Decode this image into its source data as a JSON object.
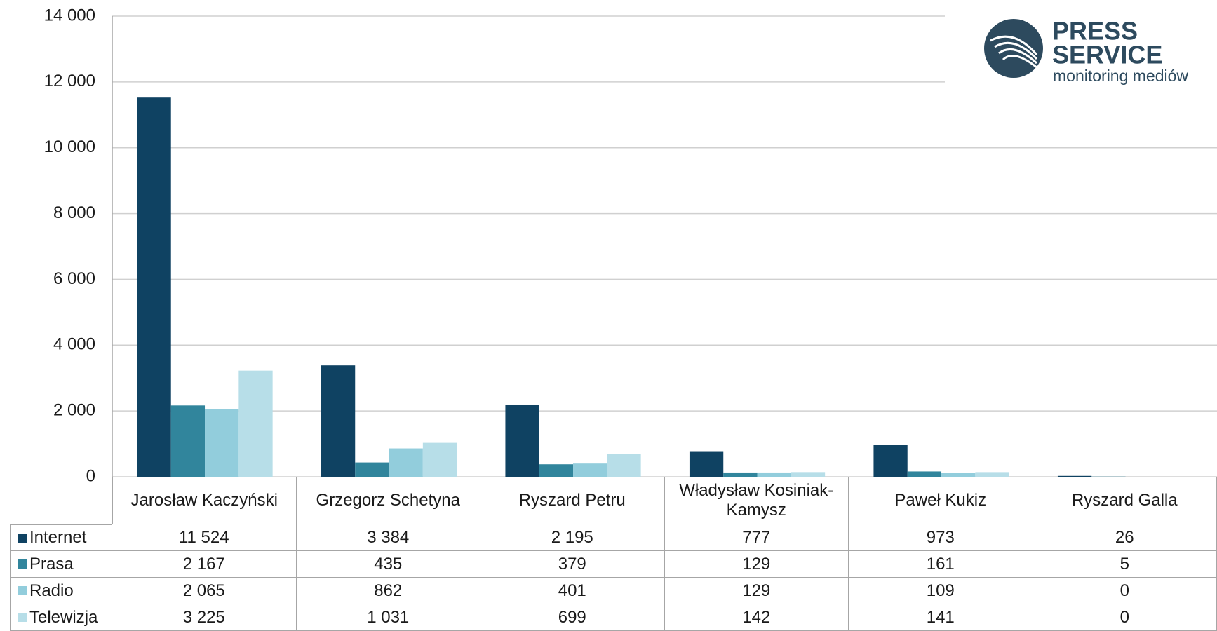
{
  "chart_data": {
    "type": "bar",
    "categories": [
      "Jarosław Kaczyński",
      "Grzegorz Schetyna",
      "Ryszard Petru",
      "Władysław Kosiniak-Kamysz",
      "Paweł Kukiz",
      "Ryszard Galla"
    ],
    "series": [
      {
        "name": "Internet",
        "color": "#0f4262",
        "values": [
          11524,
          3384,
          2195,
          777,
          973,
          26
        ],
        "value_labels": [
          "11 524",
          "3 384",
          "2 195",
          "777",
          "973",
          "26"
        ]
      },
      {
        "name": "Prasa",
        "color": "#31859c",
        "values": [
          2167,
          435,
          379,
          129,
          161,
          5
        ],
        "value_labels": [
          "2 167",
          "435",
          "379",
          "129",
          "161",
          "5"
        ]
      },
      {
        "name": "Radio",
        "color": "#92cddc",
        "values": [
          2065,
          862,
          401,
          129,
          109,
          0
        ],
        "value_labels": [
          "2 065",
          "862",
          "401",
          "129",
          "109",
          "0"
        ]
      },
      {
        "name": "Telewizja",
        "color": "#b7dee8",
        "values": [
          3225,
          1031,
          699,
          142,
          141,
          0
        ],
        "value_labels": [
          "3 225",
          "1 031",
          "699",
          "142",
          "141",
          "0"
        ]
      }
    ],
    "ylim": [
      0,
      14000
    ],
    "yticks": [
      0,
      {
        "value": 2000,
        "label": "2 000"
      },
      {
        "value": 4000,
        "label": "4 000"
      },
      {
        "value": 6000,
        "label": "6 000"
      },
      {
        "value": 8000,
        "label": "8 000"
      },
      {
        "value": 10000,
        "label": "10 000"
      },
      {
        "value": 12000,
        "label": "12 000"
      },
      {
        "value": 14000,
        "label": "14 000"
      }
    ],
    "grid": true,
    "logo": {
      "line1": "PRESS",
      "line2": "SERVICE",
      "line3": "monitoring mediów"
    }
  }
}
